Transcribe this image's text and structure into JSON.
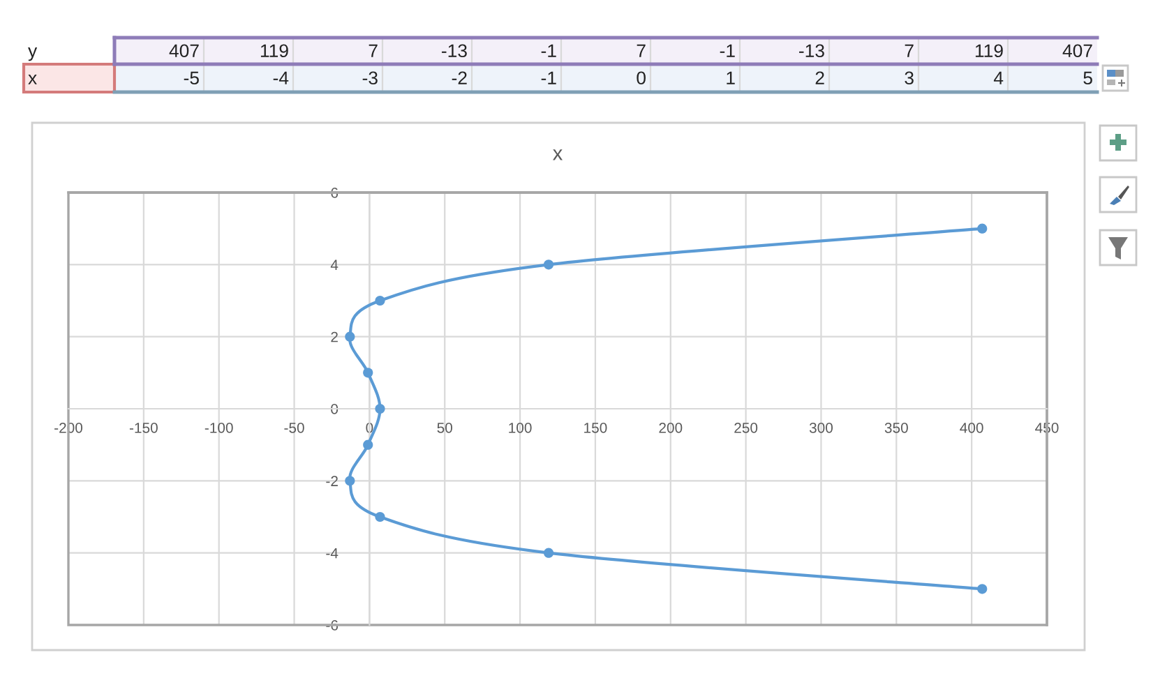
{
  "chart_data": {
    "type": "line",
    "title": "x",
    "x": [
      407,
      119,
      7,
      -13,
      -1,
      7,
      -1,
      -13,
      7,
      119,
      407
    ],
    "values": [
      -5,
      -4,
      -3,
      -2,
      -1,
      0,
      1,
      2,
      3,
      4,
      5
    ],
    "color": "#5b9bd5",
    "marker": "circle",
    "line_style": "solid",
    "xlim": [
      -200,
      450
    ],
    "xticks": [
      -200,
      -150,
      -100,
      -50,
      0,
      50,
      100,
      150,
      200,
      250,
      300,
      350,
      400,
      450
    ],
    "ylim": [
      -6,
      6
    ],
    "yticks": [
      -6,
      -4,
      -2,
      0,
      2,
      4,
      6
    ],
    "grid": true,
    "annotations": [
      "y",
      "407",
      "119",
      "7",
      "-13",
      "-1",
      "7",
      "-1",
      "-13",
      "7",
      "119",
      "407",
      "x",
      "-5",
      "-4",
      "-3",
      "-2",
      "-1",
      "0",
      "1",
      "2",
      "3",
      "4",
      "5"
    ]
  }
}
